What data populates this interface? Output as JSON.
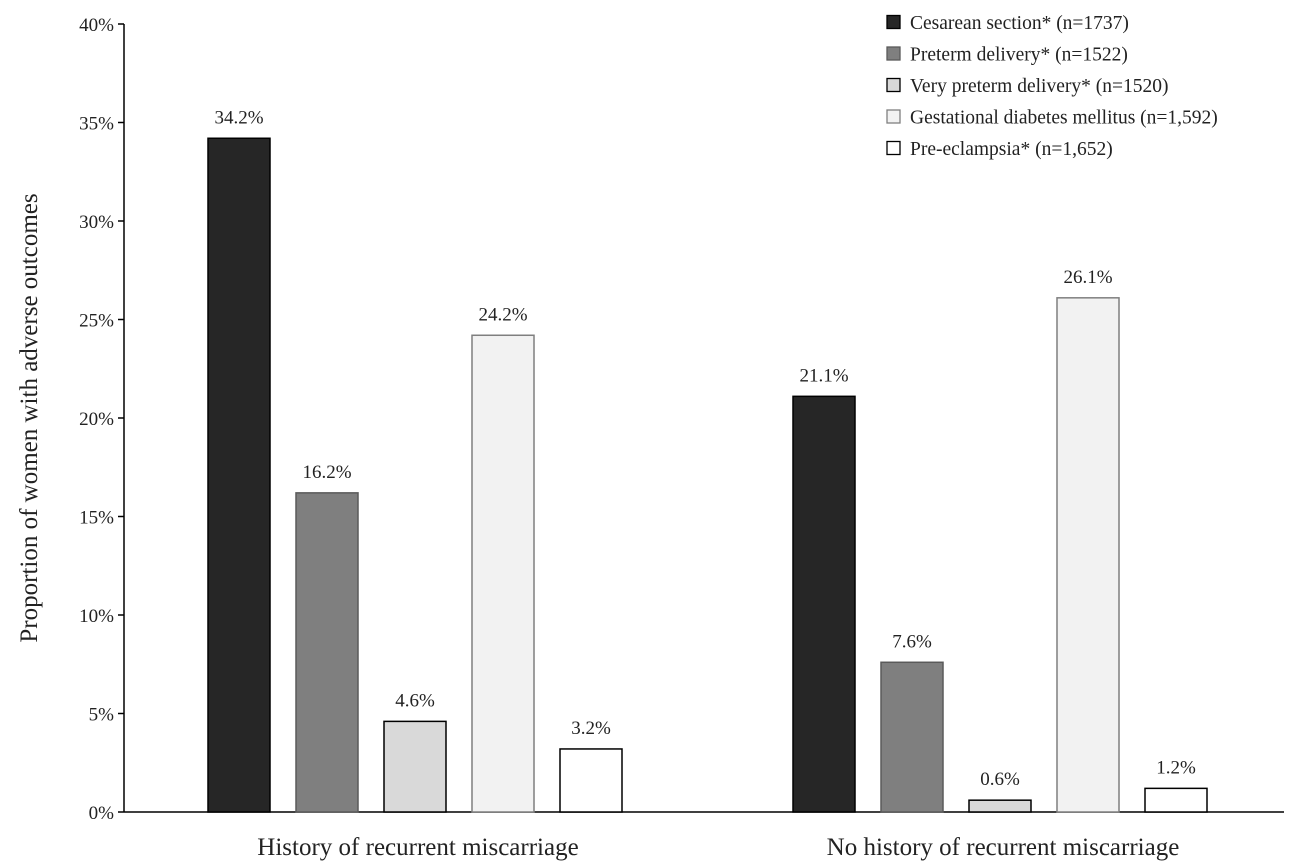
{
  "chart_data": {
    "type": "bar",
    "title": "",
    "xlabel": "",
    "ylabel": "Proportion of women with adverse outcomes",
    "ylim": [
      0,
      40
    ],
    "yticks": [
      "0%",
      "5%",
      "10%",
      "15%",
      "20%",
      "25%",
      "30%",
      "35%",
      "40%"
    ],
    "grid": false,
    "legend_position": "top-right",
    "categories": [
      "History of recurrent miscarriage",
      "No history of recurrent miscarriage"
    ],
    "series": [
      {
        "name": "Cesarean section* (n=1737)",
        "values": [
          34.2,
          21.1
        ],
        "labels": [
          "34.2%",
          "21.1%"
        ],
        "fill": "#262626",
        "stroke": "#000000"
      },
      {
        "name": "Preterm delivery*  (n=1522)",
        "values": [
          16.2,
          7.6
        ],
        "labels": [
          "16.2%",
          "7.6%"
        ],
        "fill": "#7f7f7f",
        "stroke": "#5a5a5a"
      },
      {
        "name": "Very preterm delivery*  (n=1520)",
        "values": [
          4.6,
          0.6
        ],
        "labels": [
          "4.6%",
          "0.6%"
        ],
        "fill": "#d9d9d9",
        "stroke": "#000000"
      },
      {
        "name": "Gestational diabetes mellitus (n=1,592)",
        "values": [
          24.2,
          26.1
        ],
        "labels": [
          "24.2%",
          "26.1%"
        ],
        "fill": "#f2f2f2",
        "stroke": "#7f7f7f"
      },
      {
        "name": "Pre-eclampsia* (n=1,652)",
        "values": [
          3.2,
          1.2
        ],
        "labels": [
          "3.2%",
          "1.2%"
        ],
        "fill": "#ffffff",
        "stroke": "#000000"
      }
    ]
  }
}
